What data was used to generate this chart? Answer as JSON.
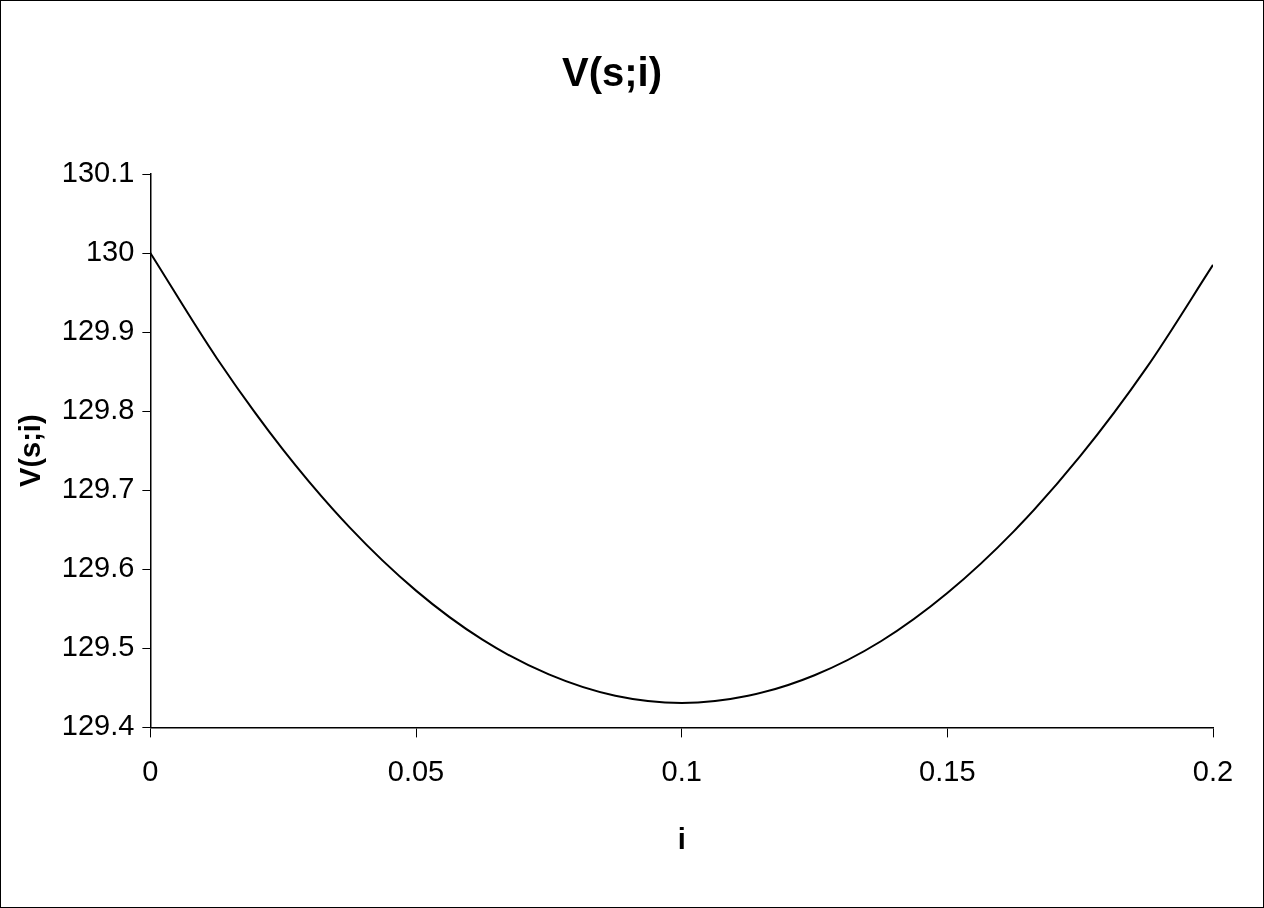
{
  "chart_data": {
    "type": "line",
    "title": "V(s;i)",
    "xlabel": "i",
    "ylabel": "V(s;i)",
    "xlim": [
      0,
      0.2
    ],
    "xticks": [
      0,
      0.05,
      0.1,
      0.15,
      0.2
    ],
    "ylim": [
      129.4,
      130.1
    ],
    "yticks": [
      129.4,
      129.5,
      129.6,
      129.7,
      129.8,
      129.9,
      130,
      130.1
    ],
    "grid": false,
    "legend": false,
    "marker": "none",
    "line_style": "solid",
    "series": [
      {
        "color": "#000000",
        "x": [
          0,
          0.0125,
          0.025,
          0.0375,
          0.05,
          0.0625,
          0.075,
          0.0875,
          0.1,
          0.1125,
          0.125,
          0.1375,
          0.15,
          0.1625,
          0.175,
          0.1875,
          0.2
        ],
        "values": [
          130.0,
          129.867,
          129.751,
          129.653,
          129.573,
          129.511,
          129.467,
          129.44,
          129.431,
          129.44,
          129.466,
          129.509,
          129.57,
          129.648,
          129.743,
          129.855,
          129.985
        ]
      }
    ]
  }
}
